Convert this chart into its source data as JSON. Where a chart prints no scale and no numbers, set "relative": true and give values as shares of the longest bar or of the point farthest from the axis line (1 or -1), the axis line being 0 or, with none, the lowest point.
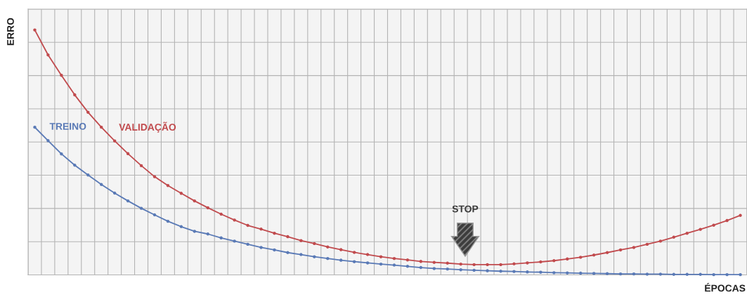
{
  "chart_data": {
    "type": "line",
    "relative": true,
    "categories": [
      null,
      null,
      null,
      null,
      null,
      null,
      null,
      null,
      null,
      null,
      null,
      null,
      null,
      null,
      null,
      null,
      null,
      null,
      null,
      null,
      null,
      null,
      null,
      null,
      null,
      null,
      null,
      null,
      null,
      null,
      null,
      null,
      null,
      null,
      null,
      null,
      null,
      null,
      null,
      null,
      null,
      null,
      null,
      null,
      null,
      null,
      null,
      null,
      null,
      null,
      null,
      null,
      null,
      null
    ],
    "series": [
      {
        "name": "TREINO",
        "color": "#5a7ab6",
        "values": [
          0.603,
          0.548,
          0.494,
          0.448,
          0.408,
          0.369,
          0.334,
          0.302,
          0.272,
          0.245,
          0.219,
          0.197,
          0.178,
          0.167,
          0.151,
          0.138,
          0.125,
          0.112,
          0.102,
          0.091,
          0.083,
          0.074,
          0.067,
          0.06,
          0.054,
          0.049,
          0.044,
          0.04,
          0.035,
          0.03,
          0.026,
          0.024,
          0.021,
          0.019,
          0.017,
          0.015,
          0.014,
          0.012,
          0.011,
          0.009,
          0.008,
          0.007,
          0.006,
          0.005,
          0.004,
          0.004,
          0.003,
          0.003,
          0.002,
          0.002,
          0.002,
          0.001,
          0.001,
          0.001
        ]
      },
      {
        "name": "VALIDAÇÃO",
        "color": "#c14b4e",
        "values": [
          1.0,
          0.898,
          0.815,
          0.735,
          0.664,
          0.603,
          0.547,
          0.495,
          0.446,
          0.401,
          0.365,
          0.333,
          0.302,
          0.274,
          0.248,
          0.224,
          0.202,
          0.187,
          0.17,
          0.156,
          0.14,
          0.128,
          0.114,
          0.103,
          0.092,
          0.083,
          0.074,
          0.067,
          0.061,
          0.055,
          0.051,
          0.048,
          0.044,
          0.042,
          0.042,
          0.042,
          0.045,
          0.049,
          0.053,
          0.058,
          0.065,
          0.072,
          0.081,
          0.091,
          0.102,
          0.112,
          0.125,
          0.138,
          0.154,
          0.17,
          0.186,
          0.203,
          0.222,
          0.243
        ]
      }
    ],
    "xlabel": "ÉPOCAS",
    "ylabel": "ERRO",
    "annotations": [
      "STOP"
    ],
    "grid": true,
    "marker": "circle",
    "line_style": "solid"
  }
}
